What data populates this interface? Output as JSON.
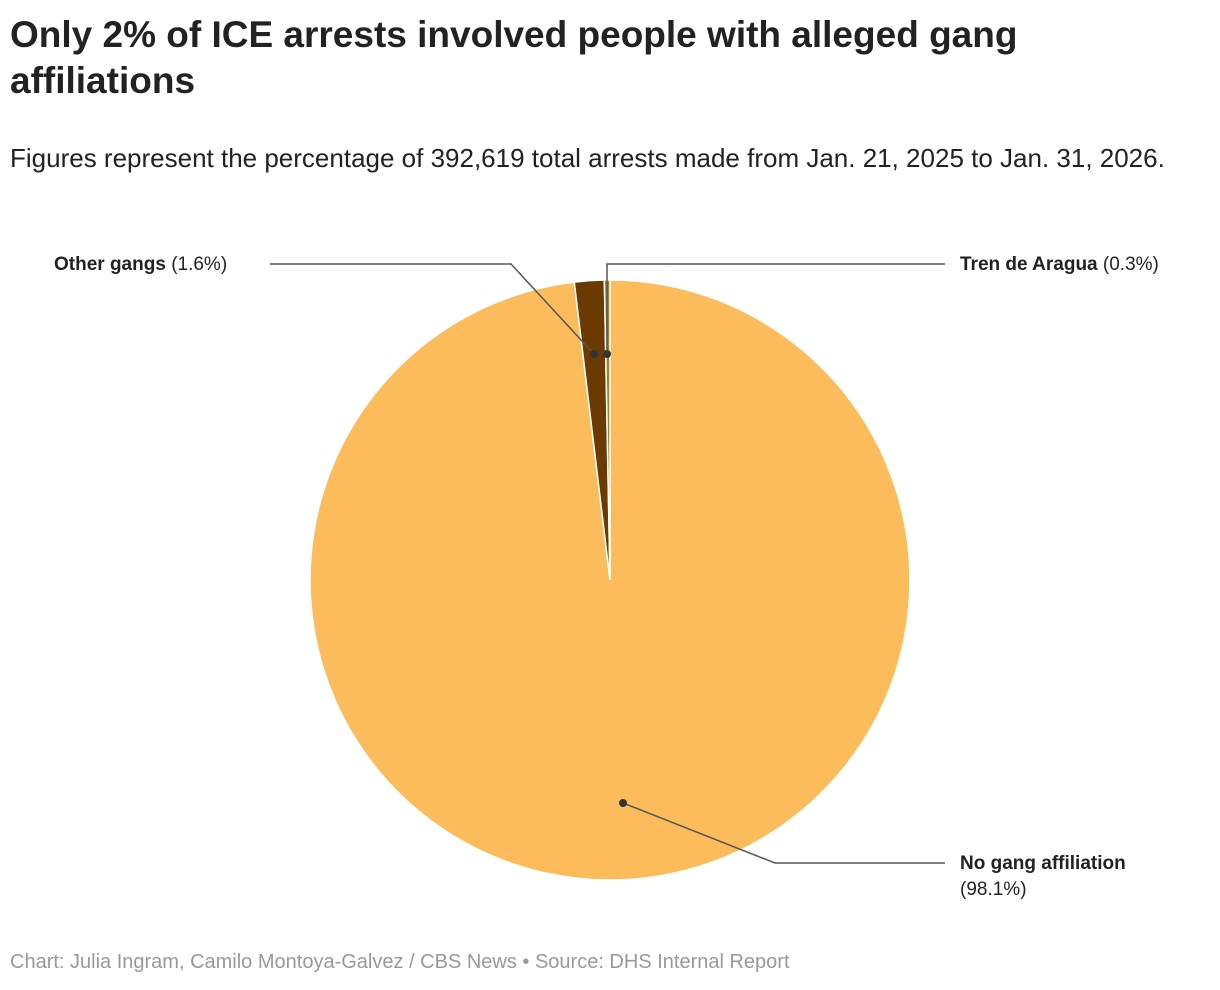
{
  "title": "Only 2% of ICE arrests involved people with alleged gang affiliations",
  "subtitle": "Figures represent the percentage of 392,619 total arrests made from Jan. 21, 2025 to Jan. 31, 2026.",
  "footer": "Chart: Julia Ingram, Camilo Montoya-Galvez / CBS News • Source: DHS Internal Report",
  "chart_data": {
    "type": "pie",
    "unit": "%",
    "slices": [
      {
        "name": "No gang affiliation",
        "value": 98.1,
        "value_label": "(98.1%)",
        "color": "#FDBC5C"
      },
      {
        "name": "Other gangs",
        "value": 1.6,
        "value_label": "(1.6%)",
        "color": "#6B3A00"
      },
      {
        "name": "Tren de Aragua",
        "value": 0.3,
        "value_label": "(0.3%)",
        "color": "#B07A22"
      }
    ]
  }
}
